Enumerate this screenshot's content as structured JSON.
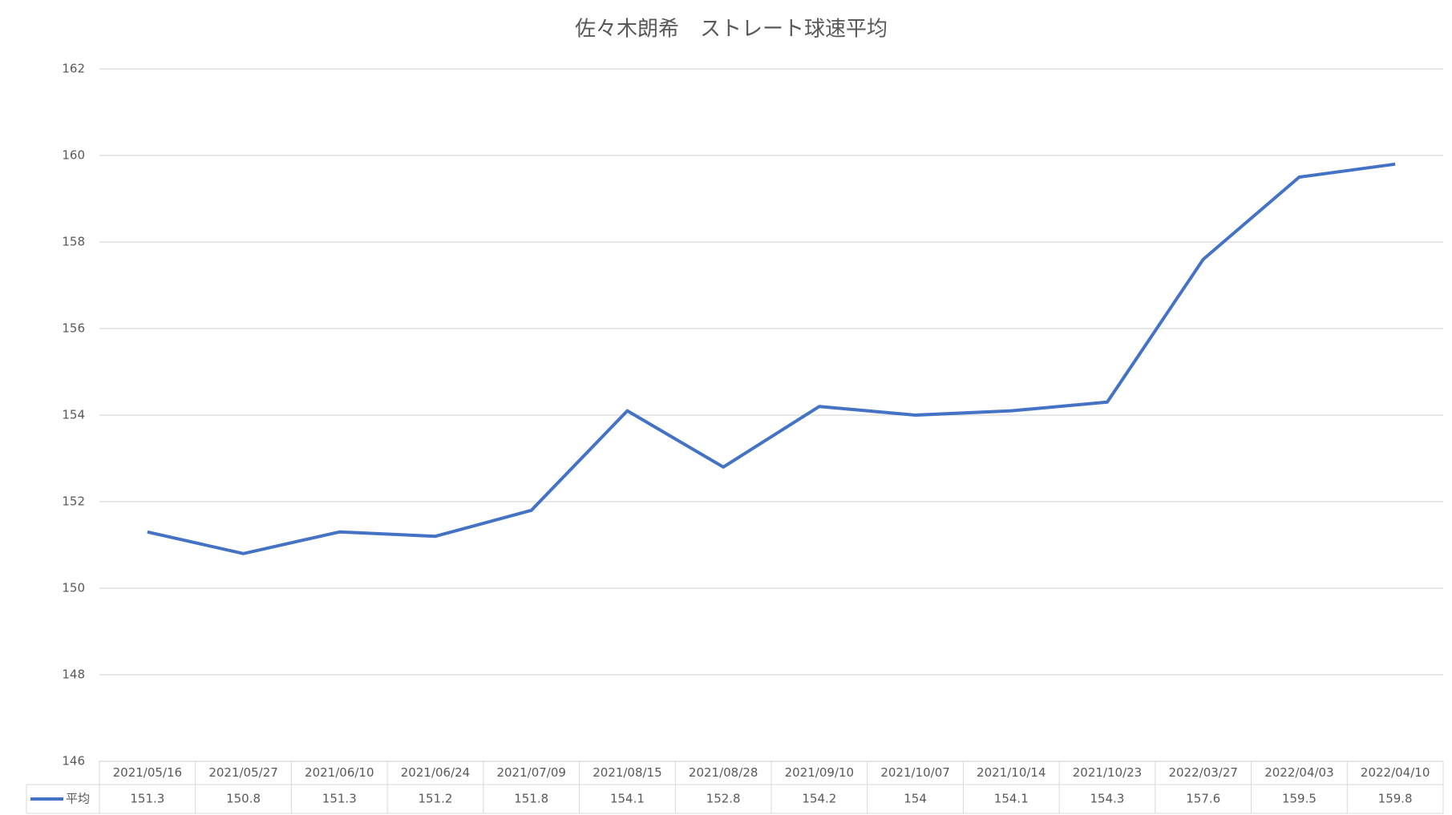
{
  "chart_data": {
    "type": "line",
    "title": "佐々木朗希　ストレート球速平均",
    "categories": [
      "2021/05/16",
      "2021/05/27",
      "2021/06/10",
      "2021/06/24",
      "2021/07/09",
      "2021/08/15",
      "2021/08/28",
      "2021/09/10",
      "2021/10/07",
      "2021/10/14",
      "2021/10/23",
      "2022/03/27",
      "2022/04/03",
      "2022/04/10"
    ],
    "series": [
      {
        "name": "平均",
        "color": "#4472c4",
        "values": [
          151.3,
          150.8,
          151.3,
          151.2,
          151.8,
          154.1,
          152.8,
          154.2,
          154,
          154.1,
          154.3,
          157.6,
          159.5,
          159.8
        ]
      }
    ],
    "ylim": [
      146,
      162
    ],
    "yticks": [
      146,
      148,
      150,
      152,
      154,
      156,
      158,
      160,
      162
    ],
    "grid": true,
    "data_table": true
  }
}
